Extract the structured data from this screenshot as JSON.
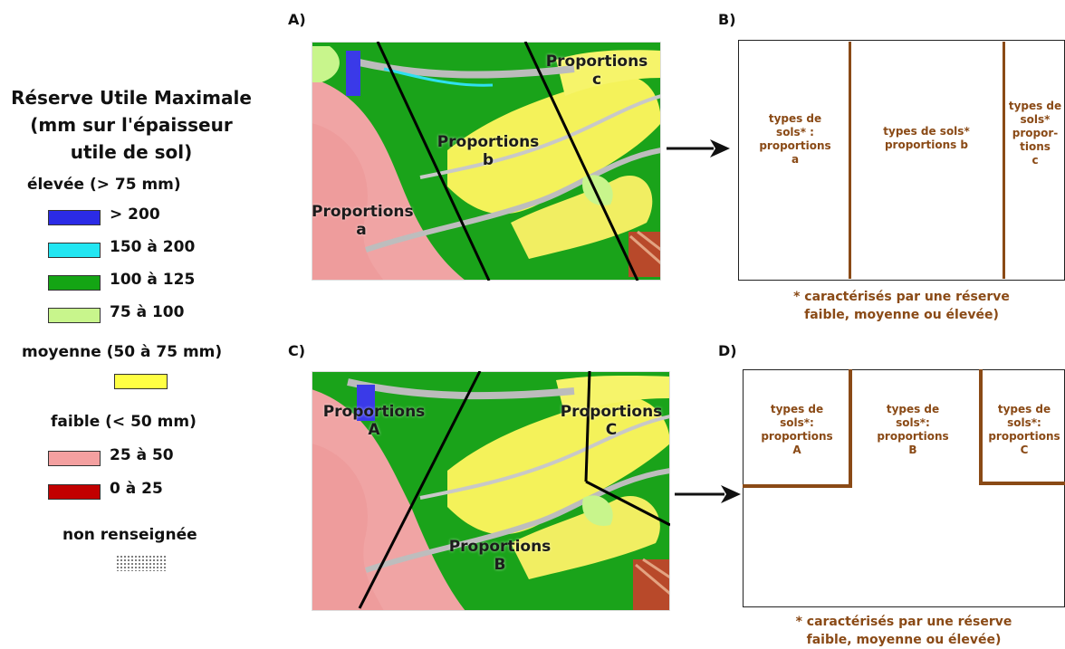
{
  "legend": {
    "title": "Réserve Utile Maximale\n(mm sur l'épaisseur\nutile de sol)",
    "title_lines": [
      "Réserve Utile Maximale",
      "(mm sur l'épaisseur",
      "utile de sol)"
    ],
    "groups": [
      {
        "label": "élevée (> 75 mm)",
        "items": [
          {
            "label": "> 200",
            "color": "#2b2be6"
          },
          {
            "label": "150 à 200",
            "color": "#22e6f2"
          },
          {
            "label": "100 à 125",
            "color": "#14a514"
          },
          {
            "label": "75 à 100",
            "color": "#c8f58c"
          }
        ]
      },
      {
        "label": "moyenne (50 à 75 mm)",
        "items": [
          {
            "label": "",
            "color": "#ffff44"
          }
        ]
      },
      {
        "label": "faible (< 50 mm)",
        "items": [
          {
            "label": "25 à 50",
            "color": "#f4a0a0"
          },
          {
            "label": "0 à 25",
            "color": "#c20000"
          }
        ]
      },
      {
        "label": "non renseignée",
        "items": [
          {
            "label": "",
            "color": "#888888",
            "pattern": "dots"
          }
        ]
      }
    ]
  },
  "panels": {
    "A": {
      "letter": "A)",
      "labels": [
        "Proportions\na",
        "Proportions\nb",
        "Proportions\nc"
      ]
    },
    "B": {
      "letter": "B)",
      "cells": [
        "types de\nsols* :\nproportions\na",
        "types de sols*\nproportions b",
        "types de\nsols*\npropor-\ntions\nc"
      ],
      "note": "* caractérisés par une réserve\nfaible, moyenne ou élevée)"
    },
    "C": {
      "letter": "C)",
      "labels": [
        "Proportions\nA",
        "Proportions\nB",
        "Proportions\nC"
      ]
    },
    "D": {
      "letter": "D)",
      "cells": [
        "types de\nsols*:\nproportions\nA",
        "types de\nsols*:\nproportions\nB",
        "types de\nsols*:\nproportions\nC"
      ],
      "note": "* caractérisés par une réserve\nfaible, moyenne ou élevée)"
    }
  },
  "colors": {
    "box_border": "#222222",
    "divider": "#8a4a16",
    "cell_text": "#8a4a16",
    "arrow": "#111111"
  }
}
